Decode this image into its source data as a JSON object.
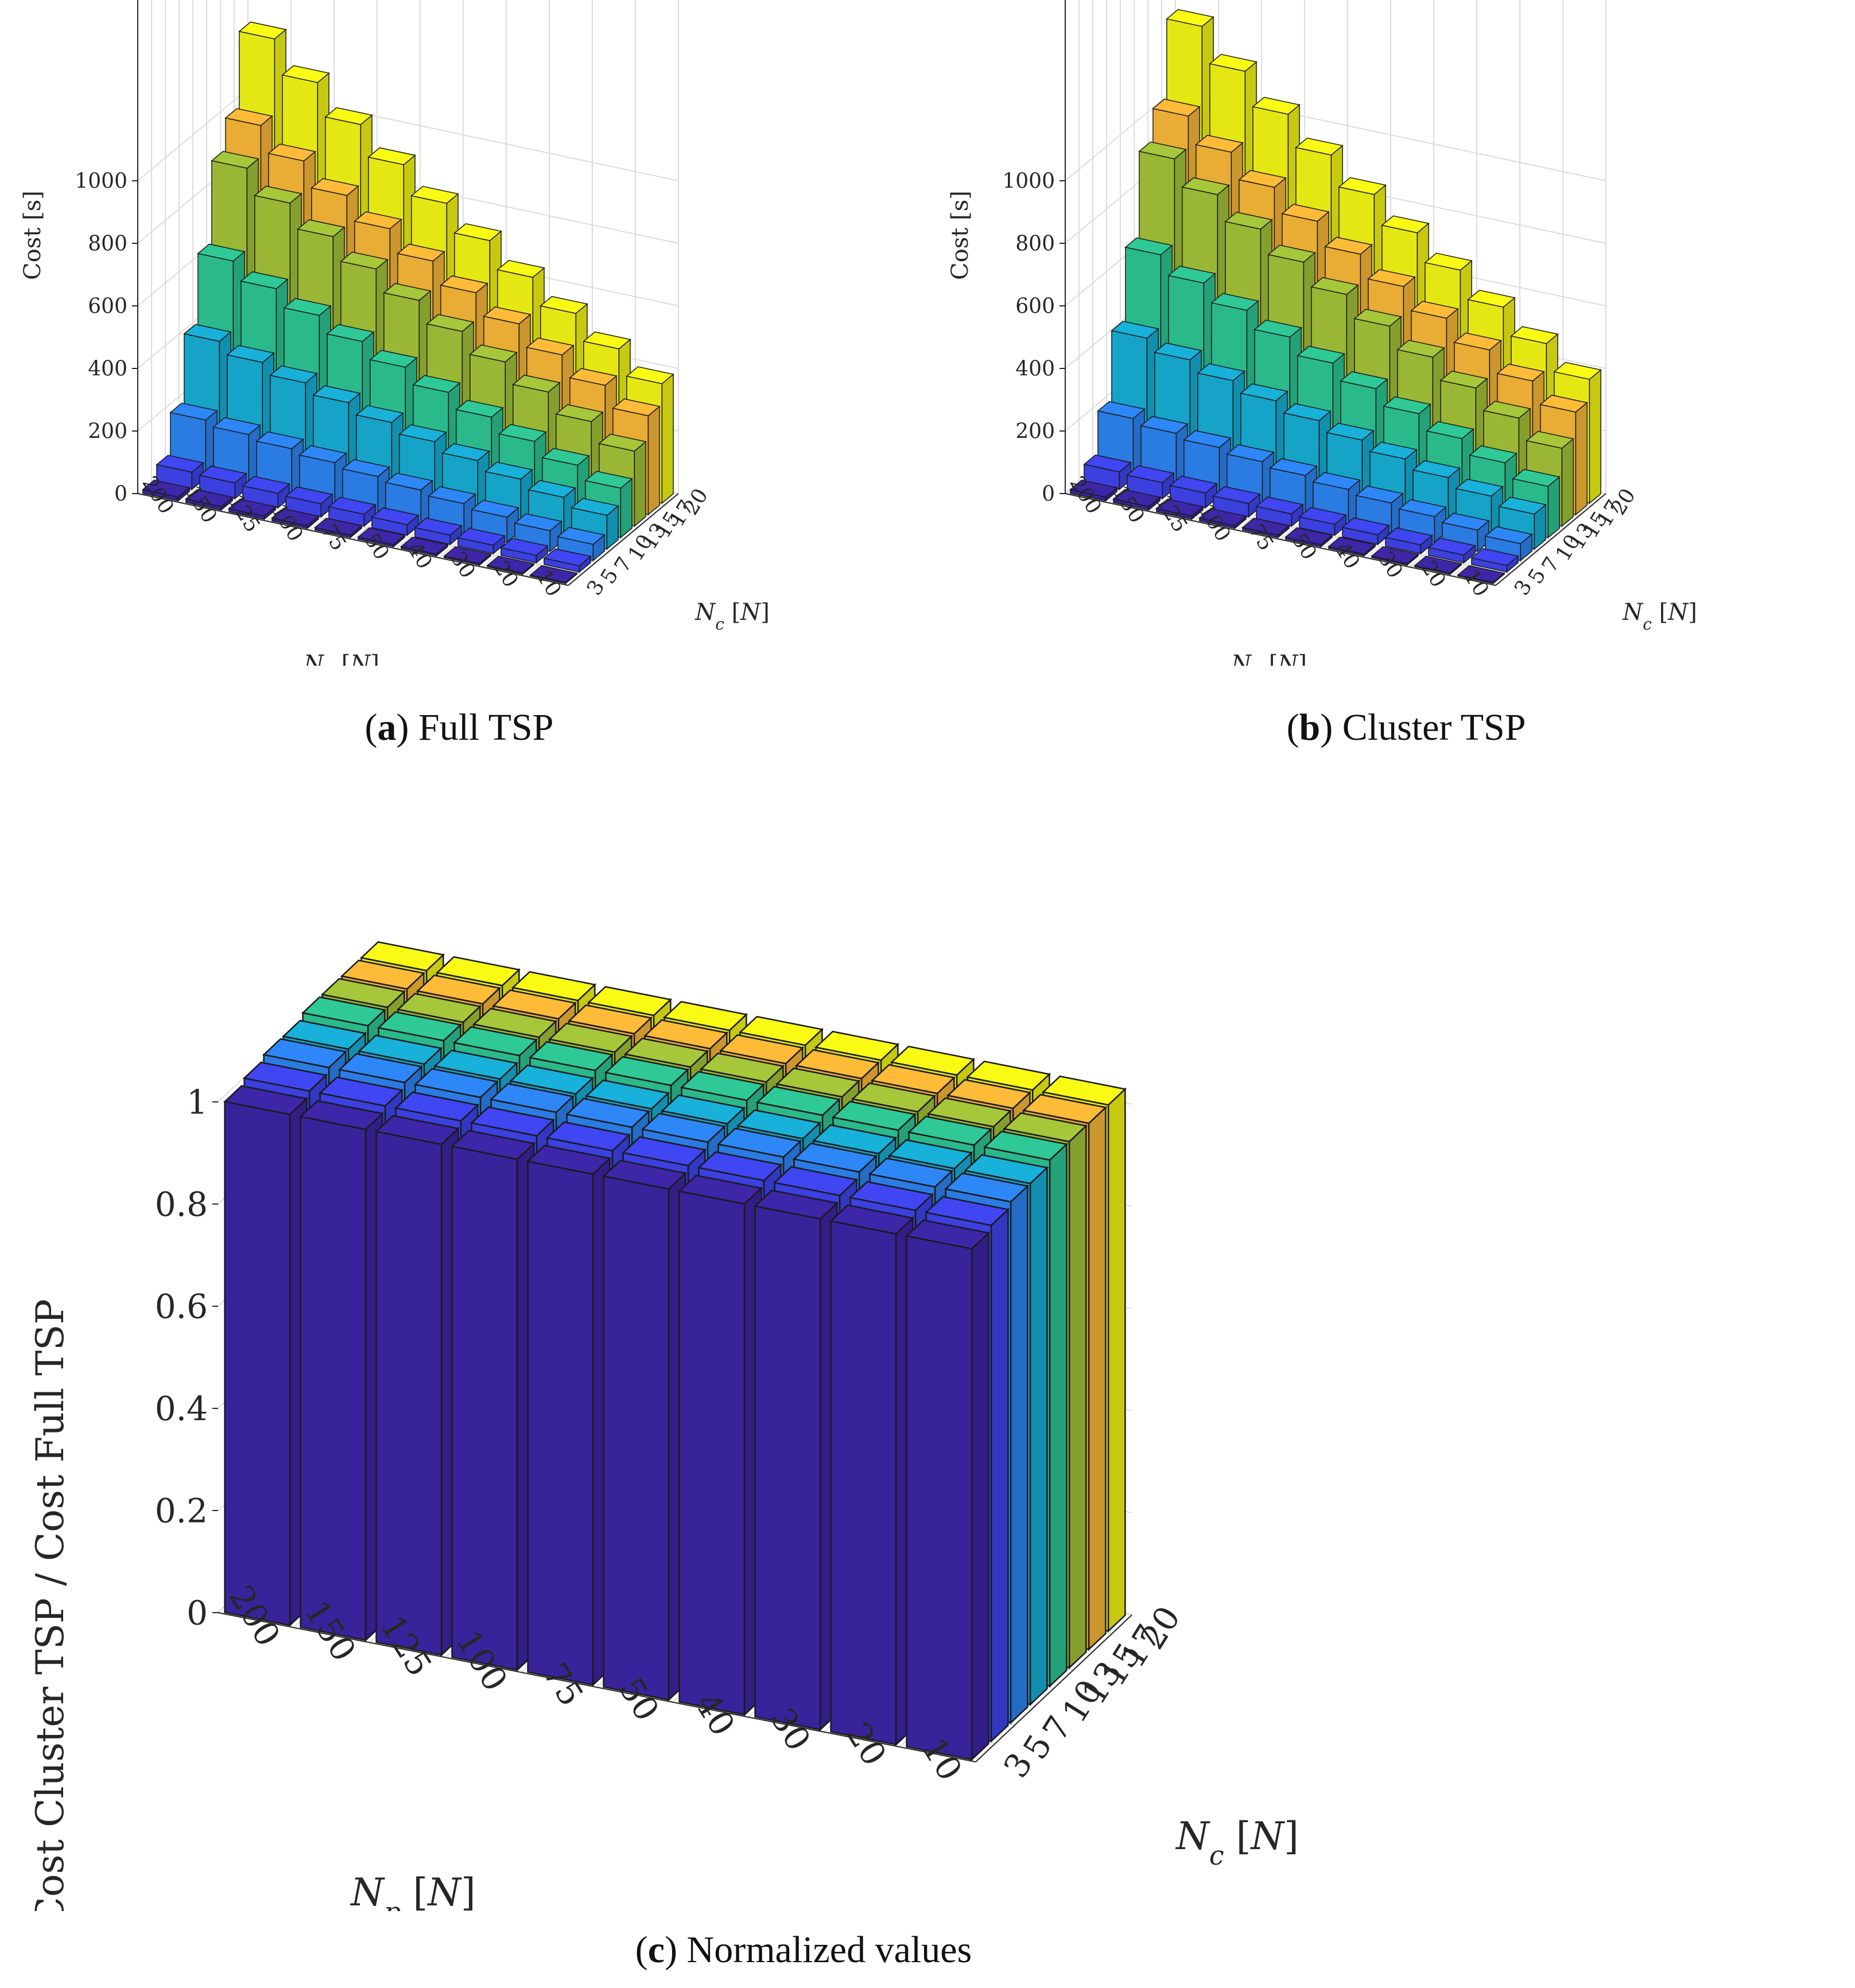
{
  "chart_data": [
    {
      "id": "a",
      "type": "bar3d",
      "title": "Full TSP",
      "caption_letter": "a",
      "zlabel": "Cost [s]",
      "xlabel": "Np [N]",
      "ylabel": "Nc [N]",
      "zlim": [
        0,
        1000
      ],
      "zticks": [
        "0",
        "200",
        "400",
        "600",
        "800",
        "1000"
      ],
      "np_categories": [
        "200",
        "150",
        "125",
        "100",
        "75",
        "50",
        "40",
        "30",
        "20",
        "10"
      ],
      "nc_categories": [
        "3",
        "5",
        "7",
        "10",
        "13",
        "15",
        "17",
        "20"
      ],
      "values": [
        [
          12,
          11,
          10,
          9,
          8,
          7,
          6,
          5,
          4,
          3
        ],
        [
          55,
          50,
          46,
          42,
          38,
          34,
          30,
          27,
          24,
          20
        ],
        [
          185,
          168,
          152,
          137,
          122,
          108,
          94,
          80,
          66,
          52
        ],
        [
          400,
          362,
          326,
          292,
          258,
          226,
          195,
          165,
          136,
          108
        ],
        [
          620,
          561,
          505,
          451,
          398,
          347,
          297,
          249,
          202,
          158
        ],
        [
          880,
          798,
          720,
          646,
          575,
          505,
          437,
          370,
          305,
          240
        ],
        [
          980,
          896,
          815,
          738,
          664,
          592,
          522,
          452,
          384,
          316
        ],
        [
          1220,
          1110,
          1005,
          906,
          812,
          722,
          634,
          548,
          464,
          382
        ]
      ]
    },
    {
      "id": "b",
      "type": "bar3d",
      "title": "Cluster TSP",
      "caption_letter": "b",
      "zlabel": "Cost [s]",
      "xlabel": "Np [N]",
      "ylabel": "Nc [N]",
      "zlim": [
        0,
        1000
      ],
      "zticks": [
        "0",
        "200",
        "400",
        "600",
        "800",
        "1000"
      ],
      "np_categories": [
        "200",
        "150",
        "125",
        "100",
        "75",
        "50",
        "40",
        "30",
        "20",
        "10"
      ],
      "nc_categories": [
        "3",
        "5",
        "7",
        "10",
        "13",
        "15",
        "17",
        "20"
      ],
      "values": [
        [
          12,
          11,
          10,
          9,
          8,
          7,
          6,
          5,
          4,
          3
        ],
        [
          56,
          51,
          47,
          43,
          39,
          35,
          31,
          28,
          25,
          21
        ],
        [
          190,
          172,
          156,
          140,
          125,
          110,
          96,
          82,
          68,
          54
        ],
        [
          410,
          370,
          333,
          298,
          264,
          231,
          200,
          170,
          140,
          112
        ],
        [
          640,
          579,
          521,
          465,
          411,
          359,
          308,
          258,
          210,
          164
        ],
        [
          910,
          825,
          744,
          668,
          594,
          522,
          452,
          383,
          316,
          249
        ],
        [
          1010,
          924,
          841,
          762,
          686,
          612,
          540,
          468,
          398,
          328
        ],
        [
          1260,
          1146,
          1038,
          937,
          840,
          747,
          657,
          568,
          481,
          396
        ]
      ]
    },
    {
      "id": "c",
      "type": "bar3d",
      "title": "Normalized values",
      "caption_letter": "c",
      "zlabel": "Cost Cluster TSP / Cost Full TSP",
      "xlabel": "Np [N]",
      "ylabel": "Nc [N]",
      "zlim": [
        0,
        1
      ],
      "zticks": [
        "0",
        "0.2",
        "0.4",
        "0.6",
        "0.8",
        "1"
      ],
      "np_categories": [
        "200",
        "150",
        "125",
        "100",
        "75",
        "50",
        "40",
        "30",
        "20",
        "10"
      ],
      "nc_categories": [
        "3",
        "5",
        "7",
        "10",
        "13",
        "15",
        "17",
        "20"
      ],
      "values": [
        [
          1.0,
          1.0,
          1.0,
          1.0,
          1.0,
          1.0,
          1.0,
          1.0,
          1.0,
          1.0
        ],
        [
          1.01,
          1.01,
          1.01,
          1.01,
          1.01,
          1.01,
          1.01,
          1.01,
          1.01,
          1.01
        ],
        [
          1.02,
          1.02,
          1.02,
          1.02,
          1.02,
          1.02,
          1.02,
          1.02,
          1.02,
          1.02
        ],
        [
          1.02,
          1.02,
          1.02,
          1.02,
          1.02,
          1.02,
          1.02,
          1.02,
          1.02,
          1.02
        ],
        [
          1.03,
          1.03,
          1.03,
          1.03,
          1.03,
          1.03,
          1.03,
          1.03,
          1.03,
          1.03
        ],
        [
          1.03,
          1.03,
          1.03,
          1.03,
          1.03,
          1.03,
          1.03,
          1.03,
          1.03,
          1.03
        ],
        [
          1.03,
          1.03,
          1.03,
          1.03,
          1.03,
          1.03,
          1.03,
          1.03,
          1.03,
          1.03
        ],
        [
          1.03,
          1.03,
          1.03,
          1.03,
          1.03,
          1.03,
          1.03,
          1.03,
          1.03,
          1.03
        ]
      ]
    }
  ],
  "colors": {
    "nc_palette": [
      "#3e26a8",
      "#4046f2",
      "#2e87f7",
      "#17b1d9",
      "#2ec997",
      "#a6c73a",
      "#fdbb38",
      "#f9fb14"
    ],
    "edge": "#1a1a1a",
    "grid": "#dcdcdc"
  }
}
